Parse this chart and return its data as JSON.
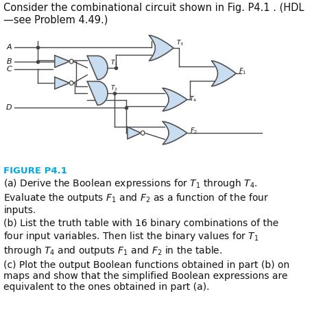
{
  "title_text": "Consider the combinational circuit shown in Fig. P4.1 . (HDL\n—see Problem 4.49.)",
  "figure_label": "FIGURE P4.1",
  "para_a": "(a) Derive the Boolean expressions for $T_1$ through $T_4$.\nEvaluate the outputs $F_1$ and $F_2$ as a function of the four\ninputs.",
  "para_b": "(b) List the truth table with 16 binary combinations of the\nfour input variables. Then list the binary values for $T_1$\nthrough $T_4$ and outputs $F_1$ and $F_2$ in the table.",
  "para_c": "(c) Plot the output Boolean functions obtained in part (b) on\nmaps and show that the simplified Boolean expressions are\nequivalent to the ones obtained in part (a).",
  "bg_color": "#ffffff",
  "text_color": "#111111",
  "figure_label_color": "#00aadd",
  "gate_fill": "#c8ddf0",
  "gate_edge": "#555555",
  "wire_color": "#444444",
  "font_size_title": 10.5,
  "font_size_body": 10.0,
  "font_size_label": 9.5
}
